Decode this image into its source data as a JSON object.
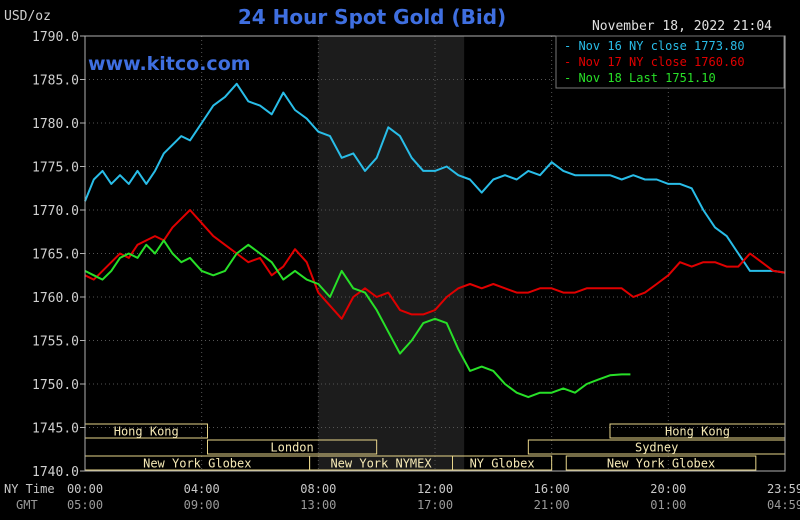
{
  "header": {
    "title": "24 Hour Spot Gold (Bid)",
    "unit": "USD/oz",
    "timestamp": "November 18, 2022 21:04",
    "watermark": "www.kitco.com"
  },
  "axes": {
    "ny_label": "NY Time",
    "gmt_label": "GMT",
    "ny_ticks": [
      "00:00",
      "04:00",
      "08:00",
      "12:00",
      "16:00",
      "20:00",
      "23:59"
    ],
    "gmt_ticks": [
      "05:00",
      "09:00",
      "13:00",
      "17:00",
      "21:00",
      "01:00",
      "04:59"
    ],
    "y_ticks": [
      "1790.0",
      "1785.0",
      "1780.0",
      "1775.0",
      "1770.0",
      "1765.0",
      "1760.0",
      "1755.0",
      "1750.0",
      "1745.0",
      "1740.0"
    ]
  },
  "colors": {
    "background": "#000000",
    "axis": "#b0b0b0",
    "title": "#3f6fe0",
    "watermark": "#3f6fe0",
    "series_cyan": "#29bde8",
    "series_red": "#e00000",
    "series_green": "#28e028",
    "session_fill": "#f5e9b5",
    "highlight": "#1a1a1a"
  },
  "sessions": [
    {
      "label": "Hong Kong",
      "start": 0.0,
      "end": 4.2,
      "row": 0
    },
    {
      "label": "Hong Kong",
      "start": 18.0,
      "end": 24.0,
      "row": 0
    },
    {
      "label": "London",
      "start": 4.2,
      "end": 10.0,
      "row": 1
    },
    {
      "label": "Sydney",
      "start": 15.2,
      "end": 24.0,
      "row": 1
    },
    {
      "label": "New York Globex",
      "start": 0.0,
      "end": 7.7,
      "row": 2
    },
    {
      "label": "New York NYMEX",
      "start": 7.7,
      "end": 12.6,
      "row": 2
    },
    {
      "label": "NY Globex",
      "start": 12.6,
      "end": 16.0,
      "row": 2
    },
    {
      "label": "New York Globex",
      "start": 16.5,
      "end": 23.0,
      "row": 2
    }
  ],
  "chart_data": {
    "type": "line",
    "title": "24 Hour Spot Gold (Bid)",
    "ylabel": "USD/oz",
    "xlabel": "NY Time",
    "xlim": [
      0,
      24
    ],
    "ylim": [
      1740,
      1790
    ],
    "highlight_range": [
      8.0,
      13.0
    ],
    "grid": true,
    "legend": "top-right",
    "series": [
      {
        "name": "Nov 16 NY close 1773.80",
        "color": "#29bde8",
        "x": [
          0.0,
          0.3,
          0.6,
          0.9,
          1.2,
          1.5,
          1.8,
          2.1,
          2.4,
          2.7,
          3.0,
          3.3,
          3.6,
          4.0,
          4.4,
          4.8,
          5.2,
          5.6,
          6.0,
          6.4,
          6.8,
          7.2,
          7.6,
          8.0,
          8.4,
          8.8,
          9.2,
          9.6,
          10.0,
          10.4,
          10.8,
          11.2,
          11.6,
          12.0,
          12.4,
          12.8,
          13.2,
          13.6,
          14.0,
          14.4,
          14.8,
          15.2,
          15.6,
          16.0,
          16.4,
          16.8,
          17.2,
          17.6,
          18.0,
          18.4,
          18.8,
          19.2,
          19.6,
          20.0,
          20.4,
          20.8,
          21.2,
          21.6,
          22.0,
          22.4,
          22.8,
          23.2,
          23.6,
          23.99
        ],
        "values": [
          1771.0,
          1773.5,
          1774.5,
          1773.0,
          1774.0,
          1773.0,
          1774.5,
          1773.0,
          1774.5,
          1776.5,
          1777.5,
          1778.5,
          1778.0,
          1780.0,
          1782.0,
          1783.0,
          1784.5,
          1782.5,
          1782.0,
          1781.0,
          1783.5,
          1781.5,
          1780.5,
          1779.0,
          1778.5,
          1776.0,
          1776.5,
          1774.5,
          1776.0,
          1779.5,
          1778.5,
          1776.0,
          1774.5,
          1774.5,
          1775.0,
          1774.0,
          1773.5,
          1772.0,
          1773.5,
          1774.0,
          1773.5,
          1774.5,
          1774.0,
          1775.5,
          1774.5,
          1774.0,
          1774.0,
          1774.0,
          1774.0,
          1773.5,
          1774.0,
          1773.5,
          1773.5,
          1773.0,
          1773.0,
          1772.5,
          1770.0,
          1768.0,
          1767.0,
          1765.0,
          1763.0,
          1763.0,
          1763.0,
          1762.8
        ]
      },
      {
        "name": "Nov 17 NY close 1760.60",
        "color": "#e00000",
        "x": [
          0.0,
          0.3,
          0.6,
          0.9,
          1.2,
          1.5,
          1.8,
          2.1,
          2.4,
          2.7,
          3.0,
          3.3,
          3.6,
          4.0,
          4.4,
          4.8,
          5.2,
          5.6,
          6.0,
          6.4,
          6.8,
          7.2,
          7.6,
          8.0,
          8.4,
          8.8,
          9.2,
          9.6,
          10.0,
          10.4,
          10.8,
          11.2,
          11.6,
          12.0,
          12.4,
          12.8,
          13.2,
          13.6,
          14.0,
          14.4,
          14.8,
          15.2,
          15.6,
          16.0,
          16.4,
          16.8,
          17.2,
          17.6,
          18.0,
          18.4,
          18.8,
          19.2,
          19.6,
          20.0,
          20.4,
          20.8,
          21.2,
          21.6,
          22.0,
          22.4,
          22.8,
          23.2,
          23.6,
          23.99
        ],
        "values": [
          1762.5,
          1762.0,
          1763.0,
          1764.0,
          1765.0,
          1764.5,
          1766.0,
          1766.5,
          1767.0,
          1766.5,
          1768.0,
          1769.0,
          1770.0,
          1768.5,
          1767.0,
          1766.0,
          1765.0,
          1764.0,
          1764.5,
          1762.5,
          1763.5,
          1765.5,
          1764.0,
          1760.5,
          1759.0,
          1757.5,
          1760.0,
          1761.0,
          1760.0,
          1760.5,
          1758.5,
          1758.0,
          1758.0,
          1758.5,
          1760.0,
          1761.0,
          1761.5,
          1761.0,
          1761.5,
          1761.0,
          1760.5,
          1760.5,
          1761.0,
          1761.0,
          1760.5,
          1760.5,
          1761.0,
          1761.0,
          1761.0,
          1761.0,
          1760.0,
          1760.5,
          1761.5,
          1762.5,
          1764.0,
          1763.5,
          1764.0,
          1764.0,
          1763.5,
          1763.5,
          1765.0,
          1764.0,
          1763.0,
          1762.8
        ]
      },
      {
        "name": "Nov 18 Last 1751.10",
        "color": "#28e028",
        "x": [
          0.0,
          0.3,
          0.6,
          0.9,
          1.2,
          1.5,
          1.8,
          2.1,
          2.4,
          2.7,
          3.0,
          3.3,
          3.6,
          4.0,
          4.4,
          4.8,
          5.2,
          5.6,
          6.0,
          6.4,
          6.8,
          7.2,
          7.6,
          8.0,
          8.4,
          8.8,
          9.2,
          9.6,
          10.0,
          10.4,
          10.8,
          11.2,
          11.6,
          12.0,
          12.4,
          12.8,
          13.2,
          13.6,
          14.0,
          14.4,
          14.8,
          15.2,
          15.6,
          16.0,
          16.4,
          16.8,
          17.2,
          17.6,
          18.0,
          18.4,
          18.7
        ],
        "values": [
          1763.0,
          1762.5,
          1762.0,
          1763.0,
          1764.5,
          1765.0,
          1764.5,
          1766.0,
          1765.0,
          1766.5,
          1765.0,
          1764.0,
          1764.5,
          1763.0,
          1762.5,
          1763.0,
          1765.0,
          1766.0,
          1765.0,
          1764.0,
          1762.0,
          1763.0,
          1762.0,
          1761.5,
          1760.0,
          1763.0,
          1761.0,
          1760.5,
          1758.5,
          1756.0,
          1753.5,
          1755.0,
          1757.0,
          1757.5,
          1757.0,
          1754.0,
          1751.5,
          1752.0,
          1751.5,
          1750.0,
          1749.0,
          1748.5,
          1749.0,
          1749.0,
          1749.5,
          1749.0,
          1750.0,
          1750.5,
          1751.0,
          1751.1,
          1751.1
        ]
      }
    ]
  }
}
